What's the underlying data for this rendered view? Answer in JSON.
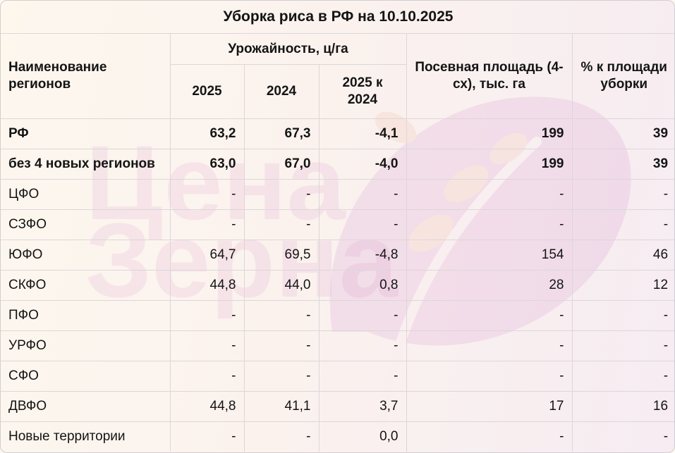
{
  "title": "Уборка риса в РФ на 10.10.2025",
  "header": {
    "name_col": "Наименование регионов",
    "yield_group": "Урожайность, ц/га",
    "year_2025": "2025",
    "year_2024": "2024",
    "diff": "2025 к 2024",
    "area": "Посевная площадь (4-сх), тыс. га",
    "pct": "% к площади уборки"
  },
  "watermark": {
    "text_line1": "Цена",
    "text_line2": "Зерна",
    "color": "#cf7fc6"
  },
  "rows": [
    {
      "name": "РФ",
      "y2025": "63,2",
      "y2024": "67,3",
      "diff": "-4,1",
      "area": "199",
      "pct": "39",
      "bold": true
    },
    {
      "name": "без 4 новых регионов",
      "y2025": "63,0",
      "y2024": "67,0",
      "diff": "-4,0",
      "area": "199",
      "pct": "39",
      "bold": true
    },
    {
      "name": "ЦФО",
      "y2025": "-",
      "y2024": "-",
      "diff": "-",
      "area": "-",
      "pct": "-"
    },
    {
      "name": "СЗФО",
      "y2025": "-",
      "y2024": "-",
      "diff": "-",
      "area": "-",
      "pct": "-"
    },
    {
      "name": "ЮФО",
      "y2025": "64,7",
      "y2024": "69,5",
      "diff": "-4,8",
      "area": "154",
      "pct": "46"
    },
    {
      "name": "СКФО",
      "y2025": "44,8",
      "y2024": "44,0",
      "diff": "0,8",
      "area": "28",
      "pct": "12"
    },
    {
      "name": "ПФО",
      "y2025": "-",
      "y2024": "-",
      "diff": "-",
      "area": "-",
      "pct": "-"
    },
    {
      "name": "УРФО",
      "y2025": "-",
      "y2024": "-",
      "diff": "-",
      "area": "-",
      "pct": "-"
    },
    {
      "name": "СФО",
      "y2025": "-",
      "y2024": "-",
      "diff": "-",
      "area": "-",
      "pct": "-"
    },
    {
      "name": "ДВФО",
      "y2025": "44,8",
      "y2024": "41,1",
      "diff": "3,7",
      "area": "17",
      "pct": "16"
    },
    {
      "name": "Новые территории",
      "y2025": "-",
      "y2024": "-",
      "diff": "0,0",
      "area": "-",
      "pct": "-"
    }
  ]
}
